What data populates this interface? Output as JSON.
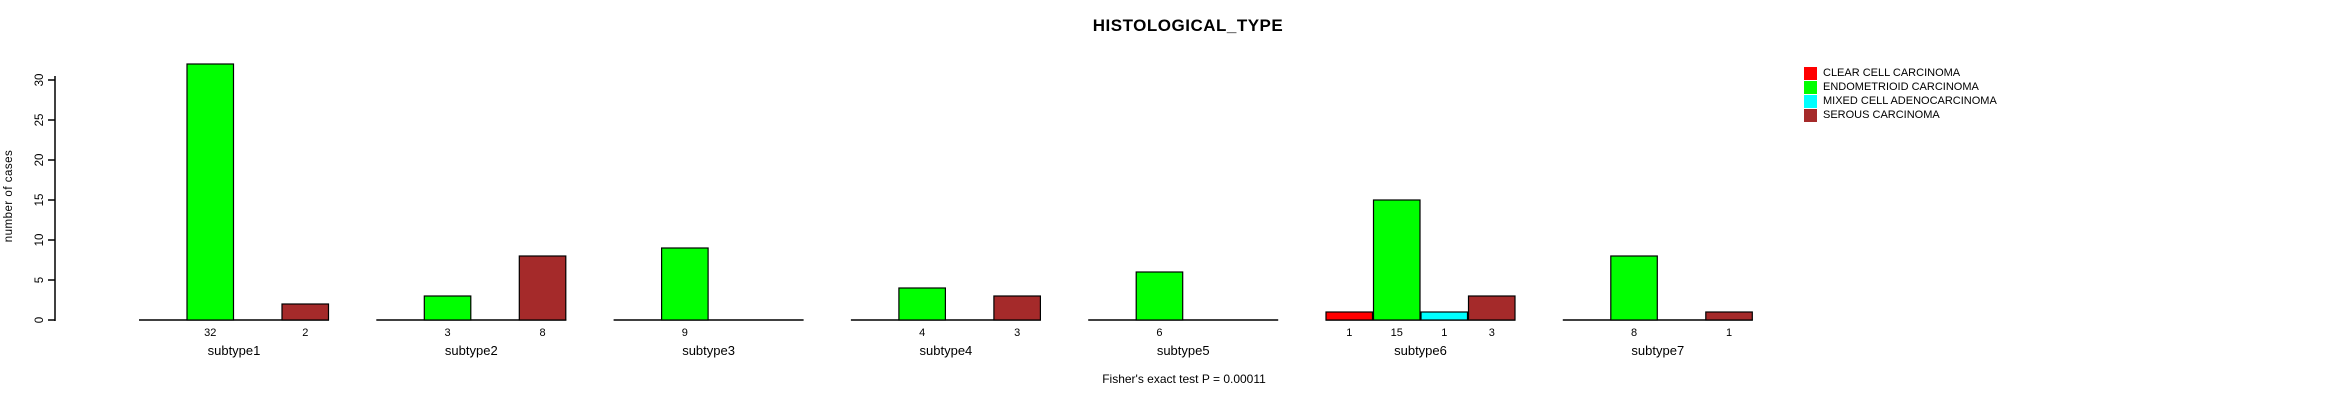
{
  "chart_data": {
    "type": "bar",
    "title": "HISTOLOGICAL_TYPE",
    "ylabel": "number of cases",
    "xlabel": "",
    "categories": [
      "subtype1",
      "subtype2",
      "subtype3",
      "subtype4",
      "subtype5",
      "subtype6",
      "subtype7"
    ],
    "series": [
      {
        "name": "CLEAR CELL CARCINOMA",
        "color": "#FF0000",
        "values": [
          0,
          0,
          0,
          0,
          0,
          1,
          0
        ]
      },
      {
        "name": "ENDOMETRIOID CARCINOMA",
        "color": "#00FF00",
        "values": [
          32,
          3,
          9,
          4,
          6,
          15,
          8
        ]
      },
      {
        "name": "MIXED CELL ADENOCARCINOMA",
        "color": "#00FFFF",
        "values": [
          0,
          0,
          0,
          0,
          0,
          1,
          0
        ]
      },
      {
        "name": "SEROUS CARCINOMA",
        "color": "#A52A2A",
        "values": [
          2,
          8,
          0,
          3,
          0,
          3,
          1
        ]
      }
    ],
    "yticks": [
      0,
      5,
      10,
      15,
      20,
      25,
      30
    ],
    "ylim": [
      0,
      33
    ],
    "bar_value_labels": true,
    "grid": false,
    "legend_position": "right",
    "annotation": "Fisher's exact test P = 0.00011",
    "axis_color": "#000000",
    "bar_border_color": "#000000"
  }
}
